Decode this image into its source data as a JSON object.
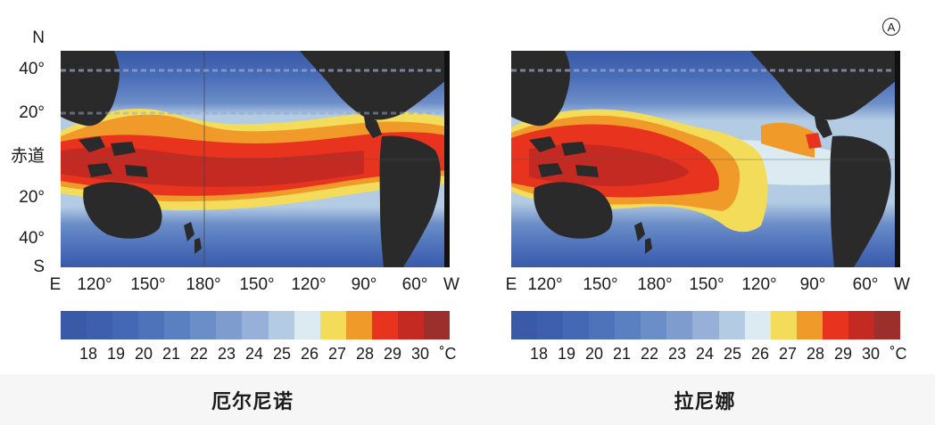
{
  "badge": "A",
  "y_labels": {
    "n": "N",
    "lat40n": "40°",
    "lat20n": "20°",
    "equator": "赤道",
    "lat20s": "20°",
    "lat40s": "40°",
    "s": "S"
  },
  "panels": [
    {
      "caption": "厄尔尼诺",
      "x_labels": [
        "E",
        "120°",
        "150°",
        "180°",
        "150°",
        "120°",
        "90°",
        "60°",
        "W"
      ],
      "scale_ticks": [
        "18",
        "19",
        "20",
        "21",
        "22",
        "23",
        "24",
        "25",
        "26",
        "27",
        "28",
        "29",
        "30"
      ],
      "unit": "˚C"
    },
    {
      "caption": "拉尼娜",
      "x_labels": [
        "E",
        "120°",
        "150°",
        "180°",
        "150°",
        "120°",
        "90°",
        "60°",
        "W"
      ],
      "scale_ticks": [
        "18",
        "19",
        "20",
        "21",
        "22",
        "23",
        "24",
        "25",
        "26",
        "27",
        "28",
        "29",
        "30"
      ],
      "unit": "˚C"
    }
  ],
  "colors": {
    "land": "#2a2a2a",
    "scale": [
      "#3a5aa8",
      "#3d5fae",
      "#4468b4",
      "#4e73bb",
      "#5b80c2",
      "#6b8dc8",
      "#7f9ccf",
      "#96b0d8",
      "#b3cbe3",
      "#dcebf2",
      "#f2dc5a",
      "#f09a2a",
      "#e8331e",
      "#c42a22",
      "#9a2f2c"
    ]
  }
}
